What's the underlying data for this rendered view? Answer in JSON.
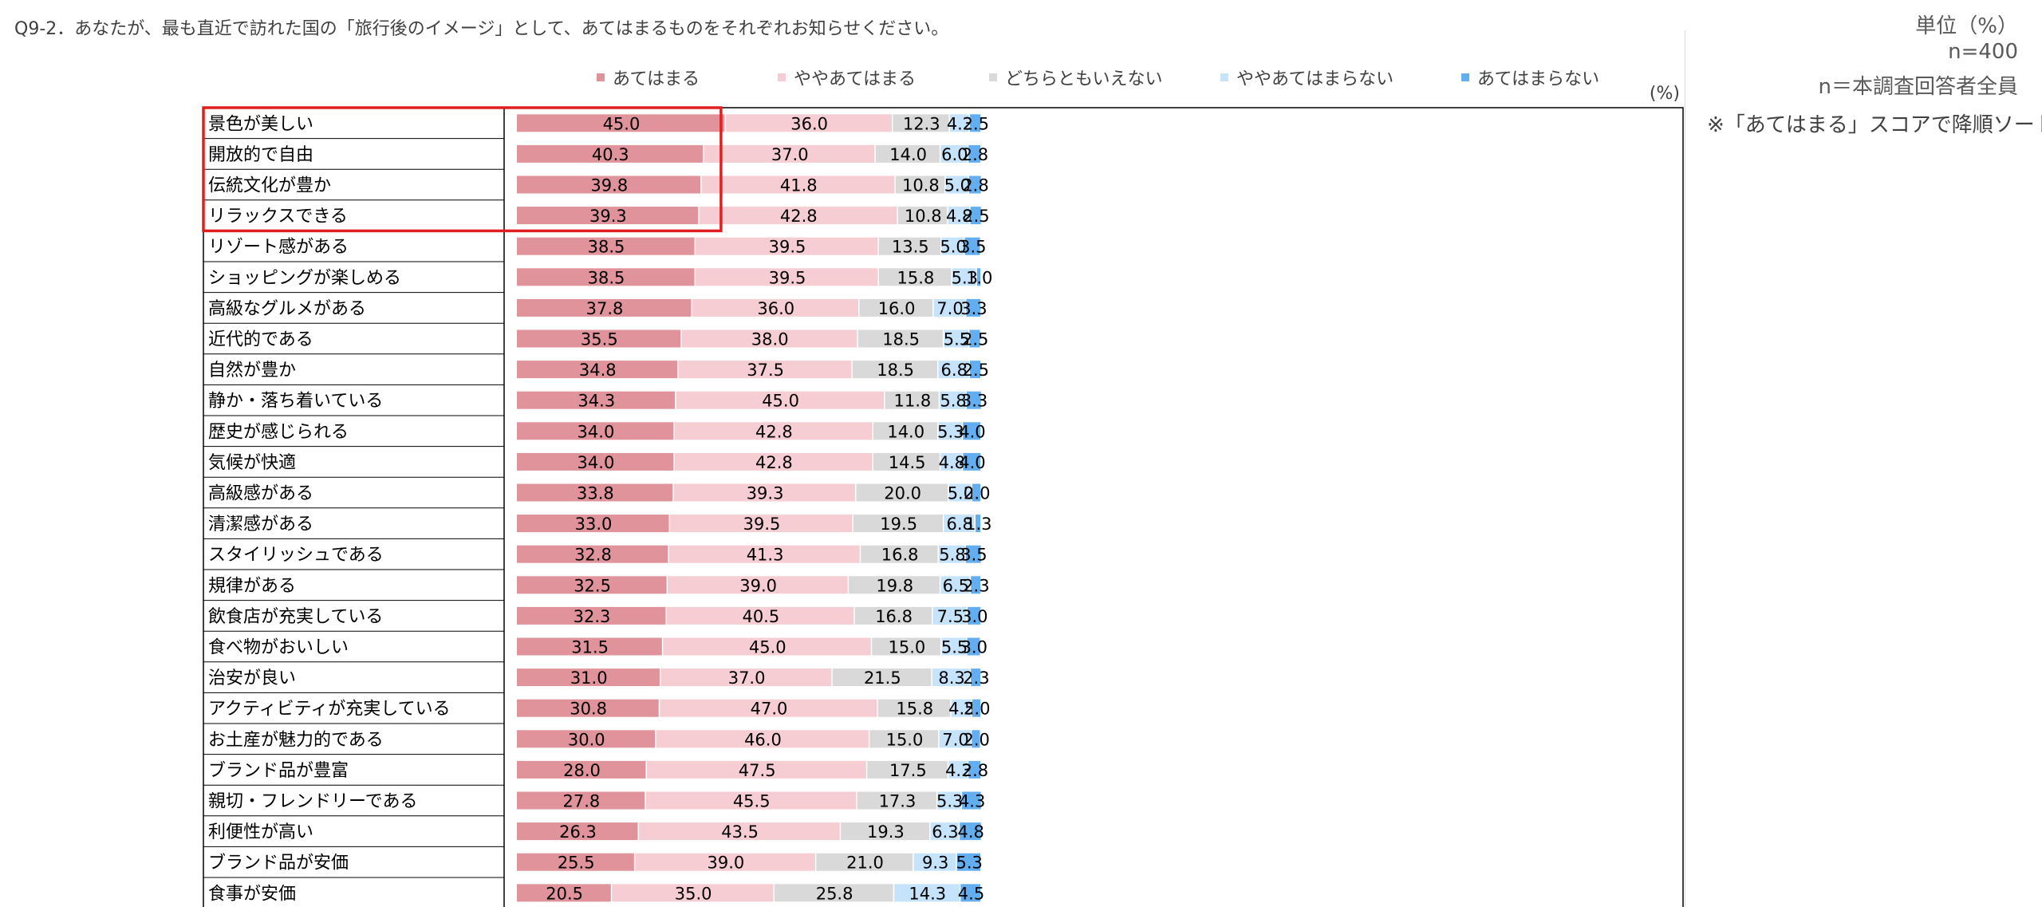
{
  "question": "Q9-2．あなたが、最も直近で訪れた国の「旅行後のイメージ」として、あてはまるものをそれぞれお知らせください。",
  "unit": "単位（%）",
  "n": "n=400",
  "base": "n＝本調査回答者全員",
  "sort_note": "※「あてはまる」スコアで降順ソート",
  "chart_data": {
    "type": "bar",
    "orientation": "horizontal",
    "stacked": true,
    "unit_label": "(%)",
    "xlim": [
      0,
      100
    ],
    "legend_position": "top",
    "highlight": {
      "from_row": 0,
      "to_row": 3,
      "color": "#e02020"
    },
    "colors": {
      "あてはまる": "#e0939b",
      "ややあてはまる": "#f5cdd2",
      "どちらともいえない": "#d9d9d9",
      "ややあてはまらない": "#c5e3fb",
      "あてはまらない": "#63aef0"
    },
    "series_names": [
      "あてはまる",
      "ややあてはまる",
      "どちらともいえない",
      "ややあてはまらない",
      "あてはまらない"
    ],
    "categories": [
      "景色が美しい",
      "開放的で自由",
      "伝統文化が豊か",
      "リラックスできる",
      "リゾート感がある",
      "ショッピングが楽しめる",
      "高級なグルメがある",
      "近代的である",
      "自然が豊か",
      "静か・落ち着いている",
      "歴史が感じられる",
      "気候が快適",
      "高級感がある",
      "清潔感がある",
      "スタイリッシュである",
      "規律がある",
      "飲食店が充実している",
      "食べ物がおいしい",
      "治安が良い",
      "アクティビティが充実している",
      "お土産が魅力的である",
      "ブランド品が豊富",
      "親切・フレンドリーである",
      "利便性が高い",
      "ブランド品が安価",
      "食事が安価"
    ],
    "labels": [
      [
        "45.0",
        "36.0",
        "12.3",
        "4.3",
        "2.5"
      ],
      [
        "40.3",
        "37.0",
        "14.0",
        "6.0",
        "2.8"
      ],
      [
        "39.8",
        "41.8",
        "10.8",
        "5.0",
        "2.8"
      ],
      [
        "39.3",
        "42.8",
        "10.8",
        "4.8",
        "2.5"
      ],
      [
        "38.5",
        "39.5",
        "13.5",
        "5.0",
        "3.5"
      ],
      [
        "38.5",
        "39.5",
        "15.8",
        "5.3",
        "1.0"
      ],
      [
        "37.8",
        "36.0",
        "16.0",
        "7.0",
        "3.3"
      ],
      [
        "35.5",
        "38.0",
        "18.5",
        "5.5",
        "2.5"
      ],
      [
        "34.8",
        "37.5",
        "18.5",
        "6.8",
        "2.5"
      ],
      [
        "34.3",
        "45.0",
        "11.8",
        "5.8",
        "3.3"
      ],
      [
        "34.0",
        "42.8",
        "14.0",
        "5.3",
        "4.0"
      ],
      [
        "34.0",
        "42.8",
        "14.5",
        "4.8",
        "4.0"
      ],
      [
        "33.8",
        "39.3",
        "20.0",
        "5.0",
        "2.0"
      ],
      [
        "33.0",
        "39.5",
        "19.5",
        "6.8",
        "1.3"
      ],
      [
        "32.8",
        "41.3",
        "16.8",
        "5.8",
        "3.5"
      ],
      [
        "32.5",
        "39.0",
        "19.8",
        "6.5",
        "2.3"
      ],
      [
        "32.3",
        "40.5",
        "16.8",
        "7.5",
        "3.0"
      ],
      [
        "31.5",
        "45.0",
        "15.0",
        "5.5",
        "3.0"
      ],
      [
        "31.0",
        "37.0",
        "21.5",
        "8.3",
        "2.3"
      ],
      [
        "30.8",
        "47.0",
        "15.8",
        "4.5",
        "2.0"
      ],
      [
        "30.0",
        "46.0",
        "15.0",
        "7.0",
        "2.0"
      ],
      [
        "28.0",
        "47.5",
        "17.5",
        "4.3",
        "2.8"
      ],
      [
        "27.8",
        "45.5",
        "17.3",
        "5.3",
        "4.3"
      ],
      [
        "26.3",
        "43.5",
        "19.3",
        "6.3",
        "4.8"
      ],
      [
        "25.5",
        "39.0",
        "21.0",
        "9.3",
        "5.3"
      ],
      [
        "20.5",
        "35.0",
        "25.8",
        "14.3",
        "4.5"
      ]
    ]
  }
}
